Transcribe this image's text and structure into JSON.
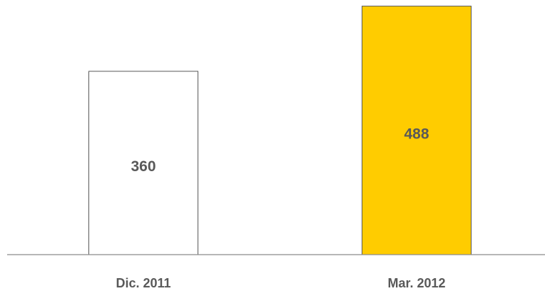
{
  "chart_data": {
    "type": "bar",
    "categories": [
      "Dic. 2011",
      "Mar. 2012"
    ],
    "values": [
      360,
      488
    ],
    "colors": [
      "#ffffff",
      "#ffcc00"
    ],
    "edgecolor": "#595959",
    "ylim": [
      0,
      500
    ]
  }
}
